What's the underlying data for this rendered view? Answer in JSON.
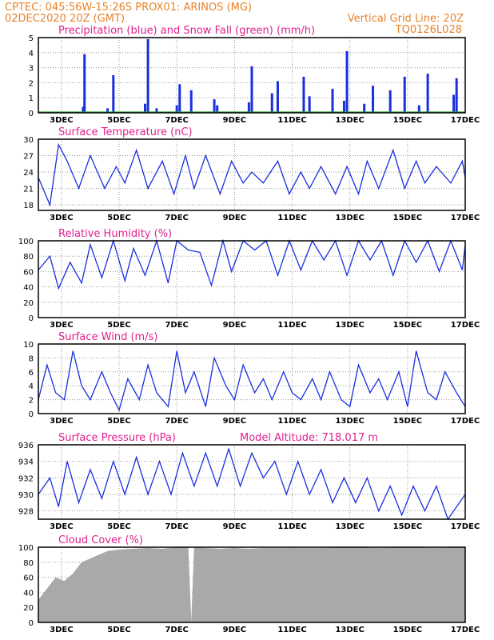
{
  "header": {
    "line1": "CPTEC:   045:56W-15:26S   PROX01: ARINOS (MG)",
    "line2": "02DEC2020 20Z (GMT)",
    "grid_note": "Vertical Grid Line: 20Z",
    "code": "TQ0126L028",
    "color": "#e8822a"
  },
  "x_axis": {
    "ticks": [
      "3DEC",
      "5DEC",
      "7DEC",
      "9DEC",
      "11DEC",
      "13DEC",
      "15DEC",
      "17DEC"
    ],
    "tick_days": [
      3,
      5,
      7,
      9,
      11,
      13,
      15,
      17
    ],
    "range_days": [
      2.2,
      17
    ]
  },
  "chart_data": [
    {
      "type": "bar",
      "title": "Precipitation (blue) and Snow Fall (green) (mm/h)",
      "ylim": [
        0,
        5
      ],
      "yticks": [
        0,
        1,
        2,
        3,
        4,
        5
      ],
      "series": [
        {
          "color": "#1a2fe0",
          "x": [
            3.75,
            3.8,
            4.6,
            4.8,
            5.9,
            6.0,
            6.3,
            7.0,
            7.1,
            7.5,
            8.3,
            8.4,
            9.5,
            9.6,
            10.3,
            10.5,
            11.4,
            11.6,
            12.4,
            12.8,
            12.9,
            13.5,
            13.8,
            14.4,
            14.9,
            15.4,
            15.7,
            16.6,
            16.7
          ],
          "values": [
            0.4,
            3.9,
            0.3,
            2.5,
            0.6,
            4.9,
            0.3,
            0.5,
            1.9,
            1.5,
            0.9,
            0.5,
            0.7,
            3.1,
            1.3,
            2.1,
            2.4,
            1.1,
            1.6,
            0.8,
            4.1,
            0.6,
            1.8,
            1.5,
            2.4,
            0.5,
            2.6,
            1.2,
            2.3
          ]
        },
        {
          "color": "#22a02a",
          "x": [
            2.2,
            17
          ],
          "values": [
            0.03,
            0.03
          ]
        }
      ]
    },
    {
      "type": "line",
      "title": "Surface Temperature (nC)",
      "ylim": [
        17,
        30
      ],
      "yticks": [
        18,
        21,
        24,
        27,
        30
      ],
      "series": [
        {
          "color": "#1a2fe0",
          "x": [
            2.2,
            2.6,
            2.9,
            3.2,
            3.6,
            4.0,
            4.5,
            4.9,
            5.2,
            5.6,
            6.0,
            6.5,
            6.9,
            7.3,
            7.6,
            8.0,
            8.5,
            8.9,
            9.3,
            9.6,
            10.0,
            10.5,
            10.9,
            11.3,
            11.6,
            12.0,
            12.5,
            12.9,
            13.3,
            13.6,
            14.0,
            14.5,
            14.9,
            15.3,
            15.6,
            16.0,
            16.5,
            16.9,
            17.0
          ],
          "values": [
            23,
            18,
            29,
            26,
            21,
            27,
            21,
            25,
            22,
            28,
            21,
            26,
            20,
            27,
            21,
            27,
            20,
            26,
            22,
            24,
            22,
            26,
            20,
            24,
            21,
            25,
            20,
            25,
            20,
            26,
            21,
            28,
            21,
            26,
            22,
            25,
            22,
            26,
            23
          ]
        }
      ]
    },
    {
      "type": "line",
      "title": "Relative Humidity (%)",
      "ylim": [
        0,
        100
      ],
      "yticks": [
        0,
        20,
        40,
        60,
        80,
        100
      ],
      "series": [
        {
          "color": "#1a2fe0",
          "x": [
            2.2,
            2.6,
            2.9,
            3.3,
            3.7,
            4.0,
            4.4,
            4.8,
            5.2,
            5.5,
            5.9,
            6.3,
            6.7,
            7.0,
            7.4,
            7.8,
            8.2,
            8.6,
            8.9,
            9.3,
            9.7,
            10.1,
            10.5,
            10.9,
            11.3,
            11.7,
            12.1,
            12.5,
            12.9,
            13.3,
            13.7,
            14.1,
            14.5,
            14.9,
            15.3,
            15.7,
            16.1,
            16.5,
            16.9,
            17.0
          ],
          "values": [
            62,
            80,
            38,
            72,
            45,
            95,
            52,
            100,
            48,
            90,
            55,
            100,
            45,
            100,
            88,
            85,
            42,
            100,
            60,
            100,
            88,
            100,
            55,
            100,
            62,
            100,
            75,
            100,
            55,
            100,
            75,
            100,
            55,
            100,
            72,
            100,
            60,
            100,
            62,
            95
          ]
        }
      ]
    },
    {
      "type": "line",
      "title": "Surface Wind (m/s)",
      "ylim": [
        0,
        10
      ],
      "yticks": [
        0,
        2,
        4,
        6,
        8,
        10
      ],
      "series": [
        {
          "color": "#1a2fe0",
          "x": [
            2.2,
            2.5,
            2.8,
            3.1,
            3.4,
            3.7,
            4.0,
            4.4,
            4.7,
            5.0,
            5.3,
            5.7,
            6.0,
            6.3,
            6.7,
            7.0,
            7.3,
            7.6,
            8.0,
            8.3,
            8.7,
            9.0,
            9.3,
            9.7,
            10.0,
            10.3,
            10.7,
            11.0,
            11.3,
            11.7,
            12.0,
            12.3,
            12.7,
            13.0,
            13.3,
            13.7,
            14.0,
            14.3,
            14.7,
            15.0,
            15.3,
            15.7,
            16.0,
            16.3,
            16.7,
            17.0
          ],
          "values": [
            2,
            7,
            3,
            2,
            9,
            4,
            2,
            6,
            3,
            0.5,
            5,
            2,
            7,
            3,
            1,
            9,
            3,
            6,
            1,
            8,
            4,
            2,
            7,
            3,
            5,
            2,
            6,
            3,
            2,
            5,
            2,
            6,
            2,
            1,
            7,
            3,
            5,
            2,
            6,
            1,
            9,
            3,
            2,
            6,
            3,
            1
          ]
        }
      ]
    },
    {
      "type": "line",
      "title": "Surface Pressure (hPa)",
      "annotation": "Model Altitude: 718.017 m",
      "ylim": [
        927,
        936
      ],
      "yticks": [
        928,
        930,
        932,
        934,
        936
      ],
      "series": [
        {
          "color": "#1a2fe0",
          "x": [
            2.2,
            2.6,
            2.9,
            3.2,
            3.6,
            4.0,
            4.4,
            4.8,
            5.2,
            5.6,
            6.0,
            6.4,
            6.8,
            7.2,
            7.6,
            8.0,
            8.4,
            8.8,
            9.2,
            9.6,
            10.0,
            10.4,
            10.8,
            11.2,
            11.6,
            12.0,
            12.4,
            12.8,
            13.2,
            13.6,
            14.0,
            14.4,
            14.8,
            15.2,
            15.6,
            16.0,
            16.4,
            16.8,
            17.0
          ],
          "values": [
            930,
            932,
            928.5,
            934,
            929,
            933,
            929.5,
            934,
            930,
            934.5,
            930,
            934,
            930,
            935,
            931,
            935,
            931,
            935.5,
            931,
            935,
            932,
            934,
            930,
            934,
            930,
            933,
            929,
            932,
            929,
            932,
            928,
            931,
            927.5,
            931,
            928,
            931,
            927,
            929,
            930
          ]
        }
      ]
    },
    {
      "type": "area",
      "title": "Cloud Cover (%)",
      "ylim": [
        0,
        100
      ],
      "yticks": [
        0,
        20,
        40,
        60,
        80,
        100
      ],
      "series": [
        {
          "color": "#a9a9a9",
          "x": [
            2.2,
            2.5,
            2.8,
            3.1,
            3.4,
            3.7,
            4.0,
            4.3,
            4.6,
            5.0,
            5.5,
            6.0,
            6.5,
            7.0,
            7.4,
            7.5,
            7.6,
            8.0,
            8.5,
            9.0,
            9.5,
            10.0,
            11.0,
            12.0,
            13.0,
            14.0,
            15.0,
            16.0,
            17.0
          ],
          "values": [
            30,
            45,
            60,
            55,
            65,
            80,
            85,
            90,
            95,
            97,
            98,
            99,
            98,
            100,
            100,
            2,
            100,
            99,
            98,
            99,
            98,
            99,
            99,
            99,
            100,
            99,
            100,
            99,
            100
          ]
        }
      ]
    }
  ]
}
